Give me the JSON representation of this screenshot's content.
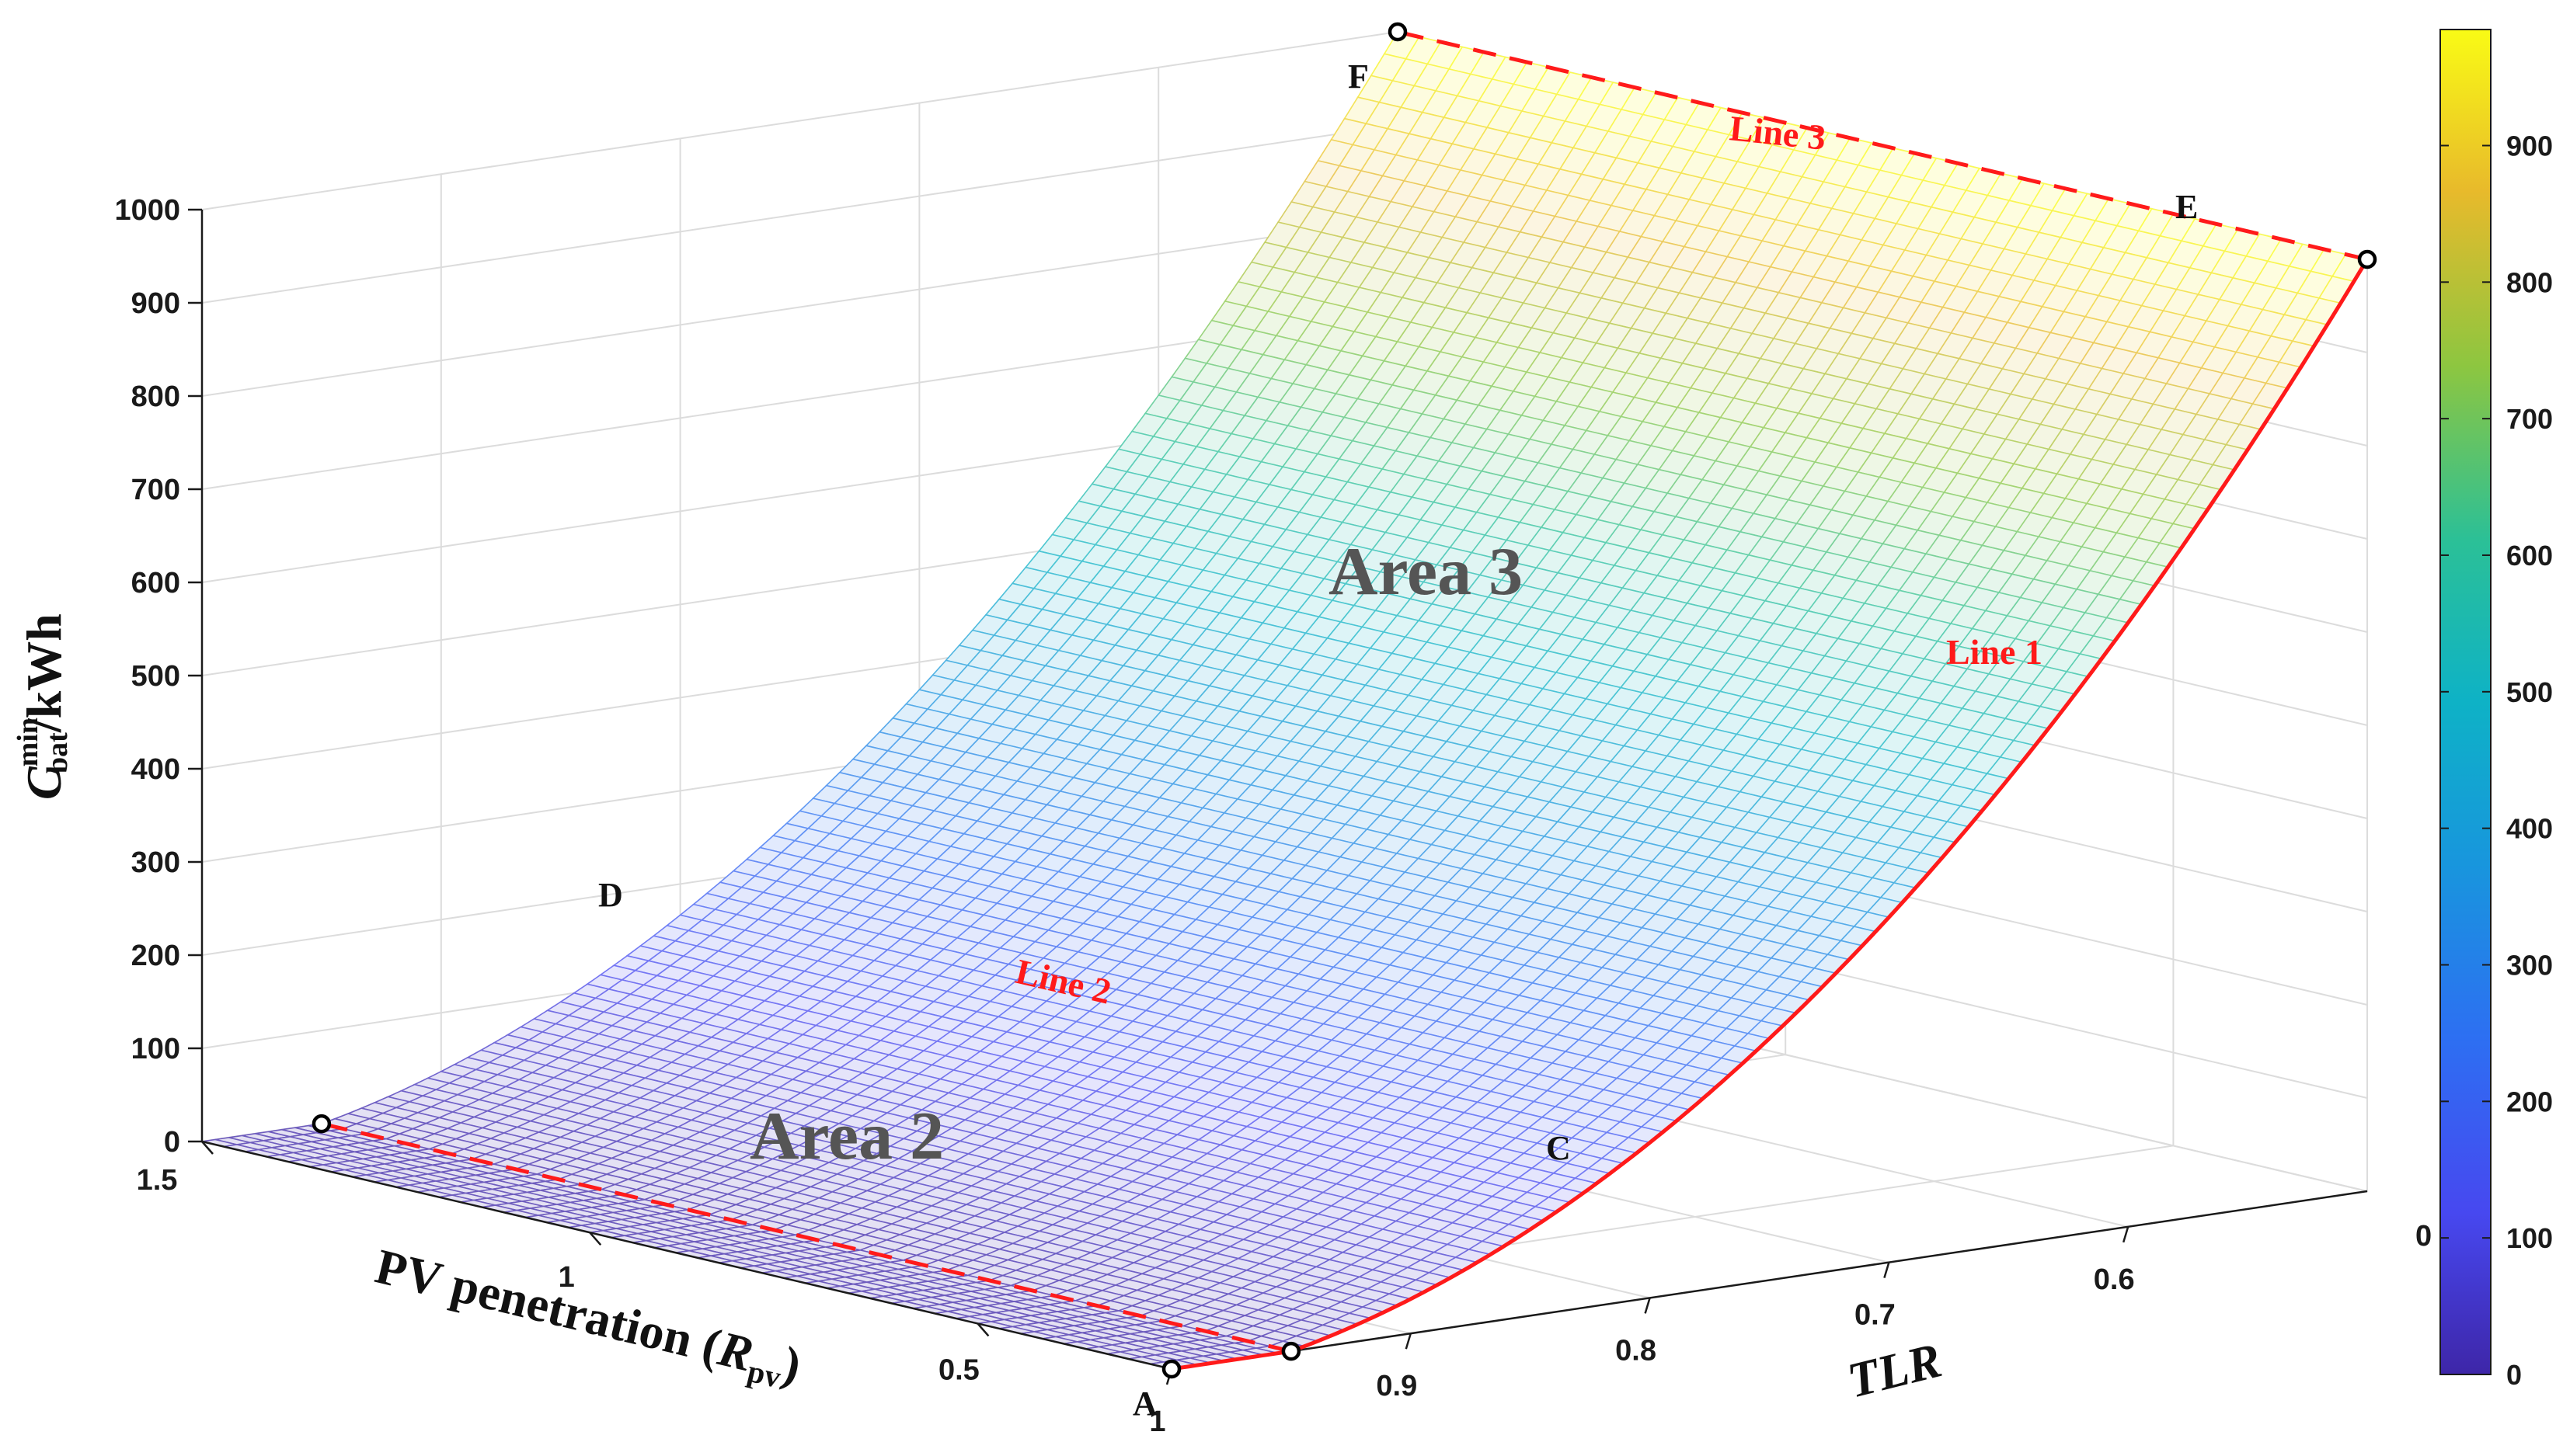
{
  "chart_data": {
    "type": "surface3d",
    "title": "",
    "zlabel": "C_bat^min/kWh",
    "zlabel_parts": {
      "symbol": "C",
      "sup": "min",
      "sub": "bat",
      "unit": "/kWh"
    },
    "xlabel": "TLR",
    "ylabel_main": "PV penetration (",
    "ylabel_sym": "R",
    "ylabel_sub": "pv",
    "ylabel_close": ")",
    "x_axis": {
      "name": "TLR",
      "range": [
        0.5,
        1
      ],
      "ticks": [
        1,
        0.9,
        0.8,
        0.7,
        0.6
      ],
      "tick_labels": [
        "1",
        "0.9",
        "0.8",
        "0.7",
        "0.6"
      ],
      "end_label": "0"
    },
    "y_axis": {
      "name": "PV penetration (Rpv)",
      "range": [
        0.25,
        1.5
      ],
      "ticks": [
        0.5,
        1,
        1.5
      ],
      "tick_labels": [
        "0.5",
        "1",
        "1.5"
      ]
    },
    "z_axis": {
      "range": [
        0,
        1000
      ],
      "ticks": [
        0,
        100,
        200,
        300,
        400,
        500,
        600,
        700,
        800,
        900,
        1000
      ],
      "tick_labels": [
        "0",
        "100",
        "200",
        "300",
        "400",
        "500",
        "600",
        "700",
        "800",
        "900",
        "1000"
      ]
    },
    "surface": {
      "description": "C_bat^min = 0 for TLR >= 0.95; rises smoothly (approximately quadratically) as TLR decreases to 0.5, reaching about 1000 kWh; independent of Rpv",
      "knee_TLR": 0.95,
      "z_at_TLR_0_5": 1000
    },
    "points": [
      {
        "label": "A",
        "TLR": 1.0,
        "Rpv": 0.25,
        "z": 0
      },
      {
        "label": "C",
        "TLR": 0.95,
        "Rpv": 0.25,
        "z": 0
      },
      {
        "label": "D",
        "TLR": 0.95,
        "Rpv": 1.5,
        "z": 0
      },
      {
        "label": "E",
        "TLR": 0.5,
        "Rpv": 0.25,
        "z": 1000
      },
      {
        "label": "F",
        "TLR": 0.5,
        "Rpv": 1.5,
        "z": 1000
      }
    ],
    "lines": [
      {
        "label": "Line 1",
        "path": "A-C-E",
        "style": "solid",
        "color": "#ff1a1a"
      },
      {
        "label": "Line 2",
        "path": "C-D",
        "style": "dashed",
        "color": "#ff1a1a"
      },
      {
        "label": "Line 3",
        "path": "E-F",
        "style": "dashed",
        "color": "#ff1a1a"
      }
    ],
    "areas": [
      {
        "label": "Area 2",
        "region": "TLR >= 0.95"
      },
      {
        "label": "Area 3",
        "region": "TLR < 0.95"
      }
    ],
    "colorbar": {
      "range": [
        0,
        985
      ],
      "ticks": [
        0,
        100,
        200,
        300,
        400,
        500,
        600,
        700,
        800,
        900
      ],
      "tick_labels": [
        "0",
        "100",
        "200",
        "300",
        "400",
        "500",
        "600",
        "700",
        "800",
        "900"
      ],
      "colormap": "parula"
    },
    "colors": {
      "accent": "#ff1a1a",
      "area_label": "#555555",
      "grid": "#dcdcdc"
    }
  }
}
